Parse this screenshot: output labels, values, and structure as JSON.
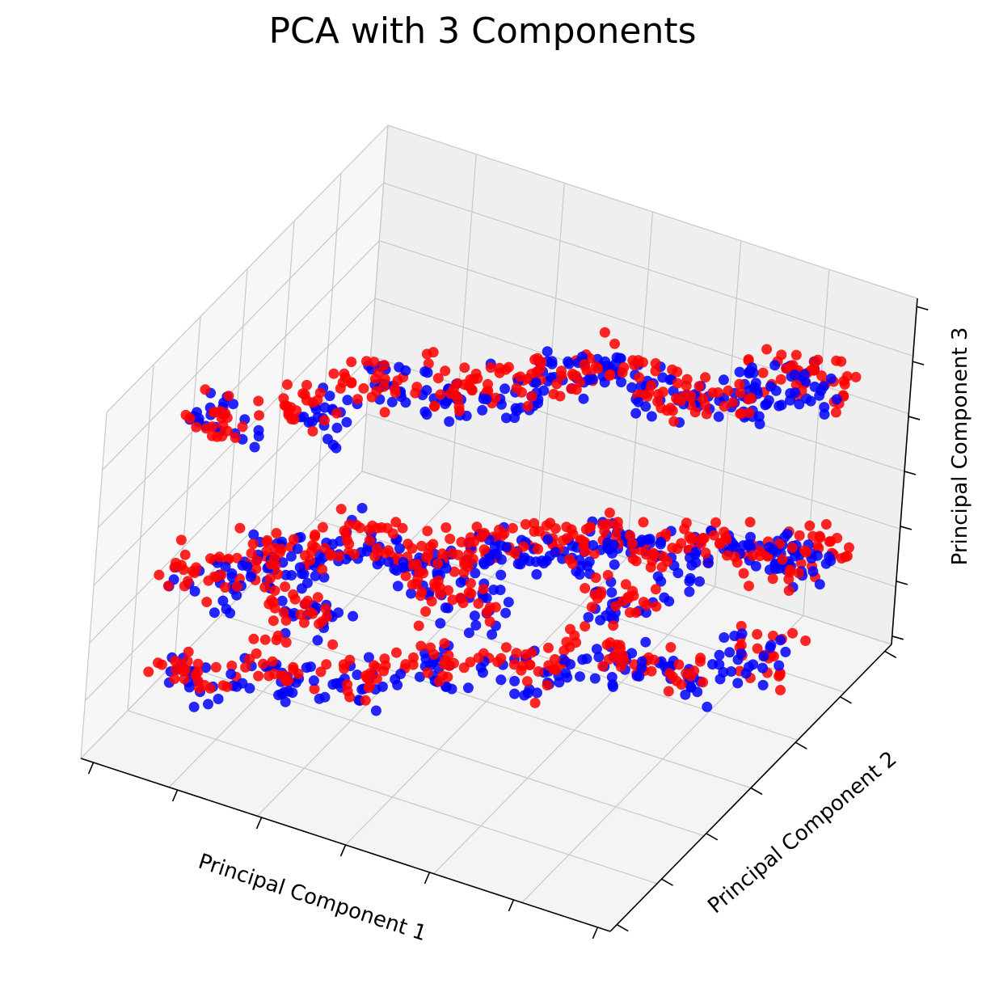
{
  "chart_data": {
    "type": "scatter",
    "projection": "3d",
    "title": "PCA with 3 Components",
    "xlabel": "Principal Component 1",
    "ylabel": "Principal Component 2",
    "zlabel": "Principal Component 3",
    "xticklabels": [],
    "yticklabels": [],
    "zticklabels": [],
    "grid": true,
    "legend": "none",
    "colors": {
      "red": "#ff0000",
      "blue": "#0000ff"
    },
    "series": [
      {
        "color": "#ff0000",
        "points": [
          [
            0.1,
            0.78,
            0.86
          ],
          [
            0.24,
            0.7,
            0.88
          ],
          [
            0.28,
            0.58,
            0.89
          ],
          [
            0.4,
            0.55,
            0.9
          ],
          [
            0.46,
            0.46,
            0.85
          ],
          [
            0.55,
            0.42,
            0.91
          ],
          [
            0.62,
            0.36,
            0.92
          ],
          [
            0.7,
            0.33,
            0.86
          ],
          [
            0.78,
            0.3,
            0.84
          ],
          [
            0.86,
            0.22,
            0.9
          ],
          [
            0.92,
            0.18,
            0.88
          ],
          [
            0.1,
            0.8,
            0.42
          ],
          [
            0.14,
            0.7,
            0.4
          ],
          [
            0.22,
            0.68,
            0.44
          ],
          [
            0.3,
            0.6,
            0.46
          ],
          [
            0.36,
            0.55,
            0.38
          ],
          [
            0.42,
            0.5,
            0.4
          ],
          [
            0.5,
            0.47,
            0.44
          ],
          [
            0.58,
            0.42,
            0.42
          ],
          [
            0.64,
            0.38,
            0.46
          ],
          [
            0.72,
            0.34,
            0.4
          ],
          [
            0.8,
            0.28,
            0.44
          ],
          [
            0.88,
            0.24,
            0.38
          ],
          [
            0.94,
            0.2,
            0.42
          ],
          [
            0.26,
            0.74,
            0.36
          ],
          [
            0.48,
            0.58,
            0.35
          ],
          [
            0.7,
            0.46,
            0.36
          ],
          [
            0.1,
            0.82,
            0.14
          ],
          [
            0.2,
            0.74,
            0.16
          ],
          [
            0.32,
            0.66,
            0.12
          ],
          [
            0.44,
            0.58,
            0.15
          ],
          [
            0.56,
            0.5,
            0.13
          ],
          [
            0.66,
            0.42,
            0.16
          ],
          [
            0.78,
            0.36,
            0.12
          ],
          [
            0.9,
            0.28,
            0.15
          ]
        ]
      },
      {
        "color": "#0000ff",
        "points": [
          [
            0.12,
            0.77,
            0.84
          ],
          [
            0.26,
            0.69,
            0.87
          ],
          [
            0.3,
            0.57,
            0.88
          ],
          [
            0.42,
            0.54,
            0.86
          ],
          [
            0.48,
            0.45,
            0.83
          ],
          [
            0.56,
            0.41,
            0.9
          ],
          [
            0.64,
            0.35,
            0.9
          ],
          [
            0.72,
            0.32,
            0.84
          ],
          [
            0.8,
            0.29,
            0.83
          ],
          [
            0.84,
            0.24,
            0.88
          ],
          [
            0.9,
            0.2,
            0.86
          ],
          [
            0.12,
            0.79,
            0.4
          ],
          [
            0.16,
            0.69,
            0.38
          ],
          [
            0.24,
            0.67,
            0.42
          ],
          [
            0.32,
            0.59,
            0.44
          ],
          [
            0.38,
            0.54,
            0.36
          ],
          [
            0.44,
            0.49,
            0.38
          ],
          [
            0.52,
            0.46,
            0.42
          ],
          [
            0.6,
            0.41,
            0.4
          ],
          [
            0.66,
            0.37,
            0.44
          ],
          [
            0.74,
            0.33,
            0.38
          ],
          [
            0.82,
            0.27,
            0.42
          ],
          [
            0.9,
            0.23,
            0.36
          ],
          [
            0.92,
            0.21,
            0.4
          ],
          [
            0.28,
            0.73,
            0.34
          ],
          [
            0.5,
            0.57,
            0.33
          ],
          [
            0.72,
            0.45,
            0.34
          ],
          [
            0.12,
            0.81,
            0.12
          ],
          [
            0.22,
            0.73,
            0.14
          ],
          [
            0.34,
            0.65,
            0.1
          ],
          [
            0.46,
            0.57,
            0.13
          ],
          [
            0.58,
            0.49,
            0.11
          ],
          [
            0.68,
            0.41,
            0.14
          ],
          [
            0.8,
            0.35,
            0.1
          ],
          [
            0.88,
            0.29,
            0.13
          ]
        ]
      }
    ]
  }
}
